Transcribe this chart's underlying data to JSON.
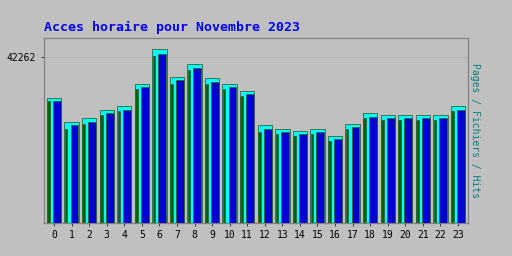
{
  "title": "Acces horaire pour Novembre 2023",
  "title_color": "#0000EE",
  "background_color": "#C0C0C0",
  "plot_bg_color": "#C0C0C0",
  "ylabel_right": "Pages / Fichiers / Hits",
  "ylabel_right_color": "#008080",
  "ytick_label": "42262",
  "hours": [
    0,
    1,
    2,
    3,
    4,
    5,
    6,
    7,
    8,
    9,
    10,
    11,
    12,
    13,
    14,
    15,
    16,
    17,
    18,
    19,
    20,
    21,
    22,
    23
  ],
  "hits": [
    0.72,
    0.58,
    0.6,
    0.65,
    0.67,
    0.8,
    1.0,
    0.84,
    0.91,
    0.83,
    0.8,
    0.76,
    0.56,
    0.54,
    0.53,
    0.54,
    0.5,
    0.57,
    0.63,
    0.62,
    0.62,
    0.62,
    0.62,
    0.67
  ],
  "fichiers": [
    0.7,
    0.56,
    0.58,
    0.63,
    0.65,
    0.78,
    0.97,
    0.82,
    0.89,
    0.81,
    0.78,
    0.74,
    0.54,
    0.52,
    0.51,
    0.52,
    0.48,
    0.55,
    0.61,
    0.6,
    0.6,
    0.6,
    0.6,
    0.65
  ],
  "pages": [
    0.7,
    0.54,
    0.57,
    0.62,
    0.64,
    0.77,
    0.96,
    0.8,
    0.88,
    0.8,
    0.77,
    0.73,
    0.52,
    0.51,
    0.5,
    0.51,
    0.47,
    0.54,
    0.6,
    0.59,
    0.59,
    0.59,
    0.59,
    0.64
  ],
  "bar_color_hits": "#00FFFF",
  "bar_color_fichiers": "#0000CD",
  "bar_color_pages": "#006400",
  "bar_edge_color": "#336633",
  "ymax": 1.06,
  "ymin": 0.0,
  "grid_color": "#B0B0B0",
  "spine_color": "#808080"
}
